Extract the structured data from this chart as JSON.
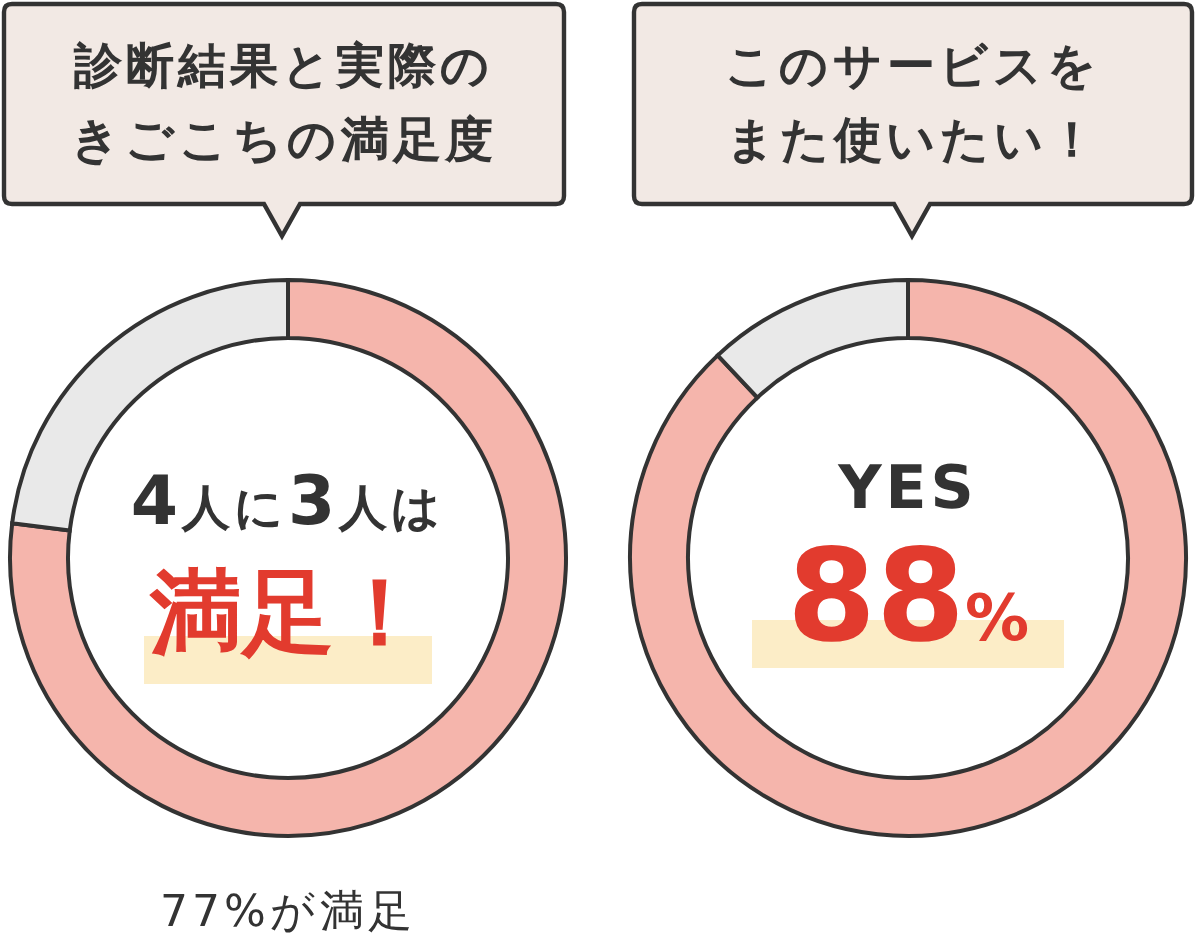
{
  "chart_data": [
    {
      "type": "donut",
      "title": "診断結果と実際のきごこちの満足度",
      "categories": [
        null,
        null
      ],
      "values": [
        77,
        23
      ],
      "colors": [
        "#f5b5ac",
        "#e9e9e9"
      ],
      "annotations": [
        "4人に3人は",
        "満足！",
        "77%が満足"
      ]
    },
    {
      "type": "donut",
      "title": "このサービスをまた使いたい！",
      "categories": [
        null,
        null
      ],
      "values": [
        88,
        12
      ],
      "colors": [
        "#f5b5ac",
        "#e9e9e9"
      ],
      "annotations": [
        "YES",
        "88%"
      ]
    }
  ]
}
